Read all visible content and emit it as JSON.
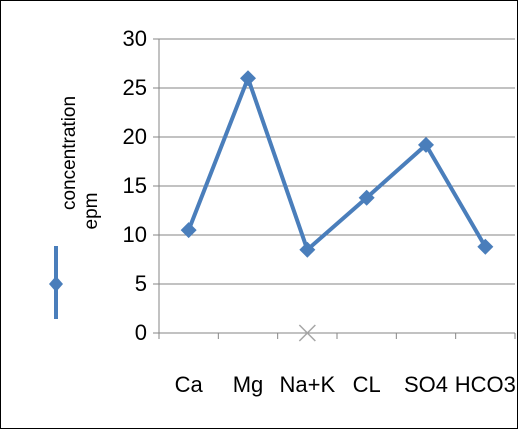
{
  "chart_data": {
    "type": "line",
    "categories": [
      "Ca",
      "Mg",
      "Na+K",
      "CL",
      "SO4",
      "HCO3"
    ],
    "series": [
      {
        "name": "",
        "values": [
          10.5,
          26.0,
          8.5,
          13.8,
          19.2,
          8.8
        ]
      }
    ],
    "extra_marker": {
      "category": "Na+K",
      "value": 0,
      "symbol": "x"
    },
    "ylabel_line1": "concentration",
    "ylabel_line2": "epm",
    "ylim": [
      0,
      30
    ],
    "yticks": [
      0,
      5,
      10,
      15,
      20,
      25,
      30
    ],
    "grid": true,
    "legend": "left",
    "colors": {
      "series": "#4a7ebb",
      "grid": "#868686",
      "marker_x": "#a6a6a6",
      "axis": "#868686"
    }
  }
}
